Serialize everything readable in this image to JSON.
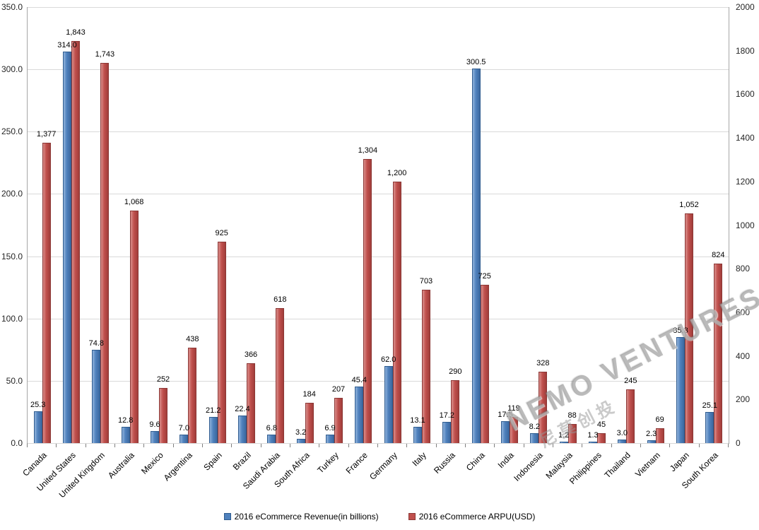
{
  "chart_data": {
    "type": "bar",
    "title": "",
    "categories": [
      "Canada",
      "United States",
      "United Kingdom",
      "Australia",
      "Mexico",
      "Argentina",
      "Spain",
      "Brazil",
      "Saudi Arabia",
      "South Africa",
      "Turkey",
      "France",
      "Germany",
      "Italy",
      "Russia",
      "China",
      "India",
      "Indonesia",
      "Malaysia",
      "Philippines",
      "Thailand",
      "Vietnam",
      "Japan",
      "South Korea"
    ],
    "series": [
      {
        "name": "2016 eCommerce Revenue(in billions)",
        "axis": "left",
        "color": "#4F81BD",
        "border": "#2F5C8F",
        "values": [
          25.3,
          314.0,
          74.8,
          12.8,
          9.6,
          7.0,
          21.2,
          22.4,
          6.8,
          3.2,
          6.9,
          45.4,
          62.0,
          13.1,
          17.2,
          300.5,
          17.5,
          8.2,
          1.2,
          1.3,
          3.0,
          2.3,
          85.3,
          25.1
        ],
        "labels": [
          "25.3",
          "314.0",
          "74.8",
          "12.8",
          "9.6",
          "7.0",
          "21.2",
          "22.4",
          "6.8",
          "3.2",
          "6.9",
          "45.4",
          "62.0",
          "13.1",
          "17.2",
          "300.5",
          "17.5",
          "8.2",
          "1.2",
          "1.3",
          "3.0",
          "2.3",
          "85.3",
          "25.1"
        ]
      },
      {
        "name": "2016 eCommerce ARPU(USD)",
        "axis": "right",
        "color": "#C0504D",
        "border": "#8C3836",
        "values": [
          1377,
          1843,
          1743,
          1068,
          252,
          438,
          925,
          366,
          618,
          184,
          207,
          1304,
          1200,
          703,
          290,
          725,
          119,
          328,
          88,
          45,
          245,
          69,
          1052,
          824
        ],
        "labels": [
          "1,377",
          "1,843",
          "1,743",
          "1,068",
          "252",
          "438",
          "925",
          "366",
          "618",
          "184",
          "207",
          "1,304",
          "1,200",
          "703",
          "290",
          "725",
          "119",
          "328",
          "88",
          "45",
          "245",
          "69",
          "1,052",
          "824"
        ]
      }
    ],
    "left_axis": {
      "min": 0,
      "max": 350,
      "step": 50,
      "ticks": [
        "350.0",
        "300.0",
        "250.0",
        "200.0",
        "150.0",
        "100.0",
        "50.0",
        "0.0"
      ]
    },
    "right_axis": {
      "min": 0,
      "max": 2000,
      "step": 200,
      "ticks": [
        "2000",
        "1800",
        "1600",
        "1400",
        "1200",
        "1000",
        "800",
        "600",
        "400",
        "200",
        "0"
      ]
    },
    "grid": true,
    "legend_position": "bottom"
  },
  "watermark": {
    "line1": "NEMO VENTURES",
    "line2": "尼莫创投"
  }
}
